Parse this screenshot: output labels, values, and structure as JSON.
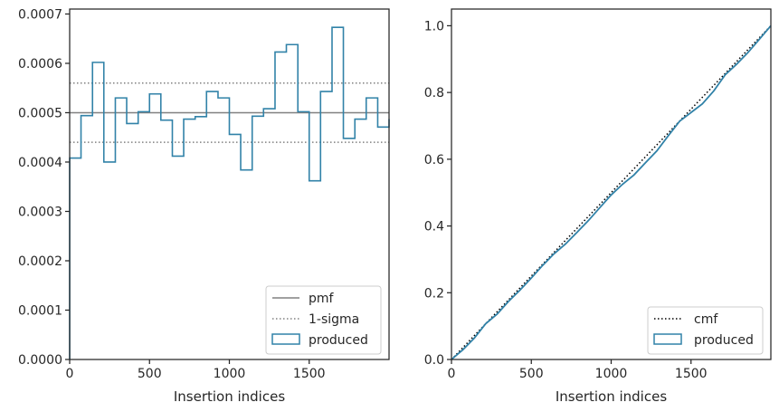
{
  "chart_data": [
    {
      "type": "step",
      "xlabel": "Insertion indices",
      "ylabel": "",
      "xlim": [
        0,
        2000
      ],
      "ylim": [
        0,
        0.00071
      ],
      "xticks": [
        0,
        500,
        1000,
        1500
      ],
      "yticks": [
        0,
        0.0001,
        0.0002,
        0.0003,
        0.0004,
        0.0005,
        0.0006,
        0.0007
      ],
      "ytick_labels": [
        "0.0000",
        "0.0001",
        "0.0002",
        "0.0003",
        "0.0004",
        "0.0005",
        "0.0006",
        "0.0007"
      ],
      "legend_position": "bottom-right",
      "reference_lines": [
        {
          "name": "pmf",
          "y": 0.0005,
          "style": "solid",
          "color": "#808080"
        },
        {
          "name": "1-sigma",
          "y": 0.00056,
          "style": "dotted",
          "color": "#808080"
        },
        {
          "name": "1-sigma",
          "y": 0.00044,
          "style": "dotted",
          "color": "#808080"
        }
      ],
      "series": [
        {
          "name": "produced",
          "color": "#3182a8",
          "bin_edges": [
            0,
            71,
            143,
            214,
            286,
            357,
            429,
            500,
            571,
            643,
            714,
            786,
            857,
            929,
            1000,
            1071,
            1143,
            1214,
            1286,
            1357,
            1429,
            1500,
            1571,
            1643,
            1714,
            1786,
            1857,
            1929,
            2000
          ],
          "values": [
            0.000408,
            0.000494,
            0.000602,
            0.0004,
            0.00053,
            0.000478,
            0.000502,
            0.000538,
            0.000485,
            0.000412,
            0.000487,
            0.000492,
            0.000543,
            0.00053,
            0.000456,
            0.000384,
            0.000493,
            0.000508,
            0.000623,
            0.000638,
            0.000502,
            0.000362,
            0.000543,
            0.000673,
            0.000448,
            0.000487,
            0.00053,
            0.000471,
            0.000487
          ]
        }
      ]
    },
    {
      "type": "line",
      "xlabel": "Insertion indices",
      "ylabel": "",
      "xlim": [
        0,
        2000
      ],
      "ylim": [
        0,
        1.05
      ],
      "xticks": [
        0,
        500,
        1000,
        1500
      ],
      "yticks": [
        0,
        0.2,
        0.4,
        0.6,
        0.8,
        1.0
      ],
      "ytick_labels": [
        "0.0",
        "0.2",
        "0.4",
        "0.6",
        "0.8",
        "1.0"
      ],
      "legend_position": "bottom-right",
      "series": [
        {
          "name": "cmf",
          "style": "dotted",
          "color": "#000000",
          "x": [
            0,
            2000
          ],
          "y": [
            0,
            1.0
          ]
        },
        {
          "name": "produced",
          "style": "solid",
          "color": "#3182a8",
          "x": [
            0,
            71,
            143,
            214,
            286,
            357,
            429,
            500,
            571,
            643,
            714,
            786,
            857,
            929,
            1000,
            1071,
            1143,
            1214,
            1286,
            1357,
            1429,
            1500,
            1571,
            1643,
            1714,
            1786,
            1857,
            1929,
            2000
          ],
          "y": [
            0,
            0.029,
            0.064,
            0.107,
            0.136,
            0.174,
            0.208,
            0.244,
            0.282,
            0.317,
            0.346,
            0.381,
            0.416,
            0.455,
            0.493,
            0.525,
            0.553,
            0.589,
            0.625,
            0.67,
            0.714,
            0.74,
            0.766,
            0.805,
            0.853,
            0.885,
            0.92,
            0.96,
            1.0
          ]
        }
      ]
    }
  ]
}
